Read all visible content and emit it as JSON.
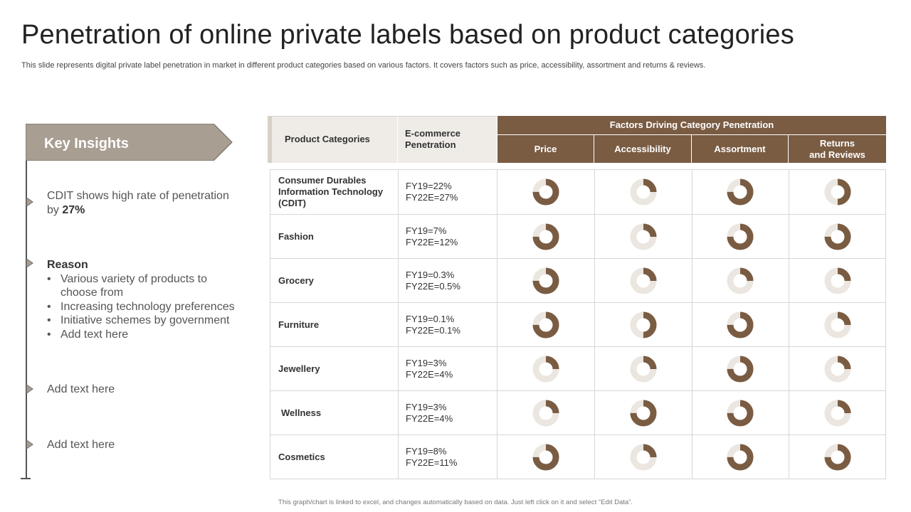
{
  "title": "Penetration of online private labels based on product categories",
  "subtitle": "This slide represents digital private label penetration in market in different product categories based on various factors. It covers factors such as price, accessibility, assortment and returns & reviews.",
  "footer": "This graph/chart is linked to excel, and changes automatically based on data. Just left click on it and select “Edit Data”.",
  "colors": {
    "accent": "#7a5c43",
    "light": "#ebe6e0",
    "key_box": "#a99e92"
  },
  "left_panel": {
    "heading": "Key Insights",
    "insight1_text": "CDIT shows high rate of penetration by ",
    "insight1_value": "27%",
    "reason_title": "Reason",
    "reasons": [
      "Various variety of products to choose from",
      "Increasing technology preferences",
      "Initiative schemes by government",
      "Add text here"
    ],
    "insight3": "Add text here",
    "insight4": "Add text here"
  },
  "table": {
    "col_category": "Product Categories",
    "col_penetration_1": "E-commerce",
    "col_penetration_2": "Penetration",
    "factors_header": "Factors Driving Category Penetration",
    "factor_cols": [
      "Price",
      "Accessibility",
      "Assortment",
      "Returns\nand Reviews"
    ],
    "rows": [
      {
        "category": "Consumer Durables Information Technology (CDIT)",
        "fy19": "FY19=22%",
        "fy22": "FY22E=27%",
        "factors": [
          0.75,
          0.25,
          0.75,
          0.5
        ]
      },
      {
        "category": "Fashion",
        "fy19": "FY19=7%",
        "fy22": "FY22E=12%",
        "factors": [
          0.75,
          0.25,
          0.75,
          0.75
        ]
      },
      {
        "category": "Grocery",
        "fy19": "FY19=0.3%",
        "fy22": "FY22E=0.5%",
        "factors": [
          0.75,
          0.25,
          0.25,
          0.25
        ]
      },
      {
        "category": "Furniture",
        "fy19": "FY19=0.1%",
        "fy22": "FY22E=0.1%",
        "factors": [
          0.75,
          0.5,
          0.75,
          0.25
        ]
      },
      {
        "category": "Jewellery",
        "fy19": "FY19=3%",
        "fy22": "FY22E=4%",
        "factors": [
          0.25,
          0.25,
          0.75,
          0.25
        ]
      },
      {
        "category": "Wellness",
        "fy19": "FY19=3%",
        "fy22": "FY22E=4%",
        "factors": [
          0.25,
          0.75,
          0.75,
          0.25
        ]
      },
      {
        "category": "Cosmetics",
        "fy19": "FY19=8%",
        "fy22": "FY22E=11%",
        "factors": [
          0.75,
          0.25,
          0.75,
          0.75
        ]
      }
    ]
  }
}
